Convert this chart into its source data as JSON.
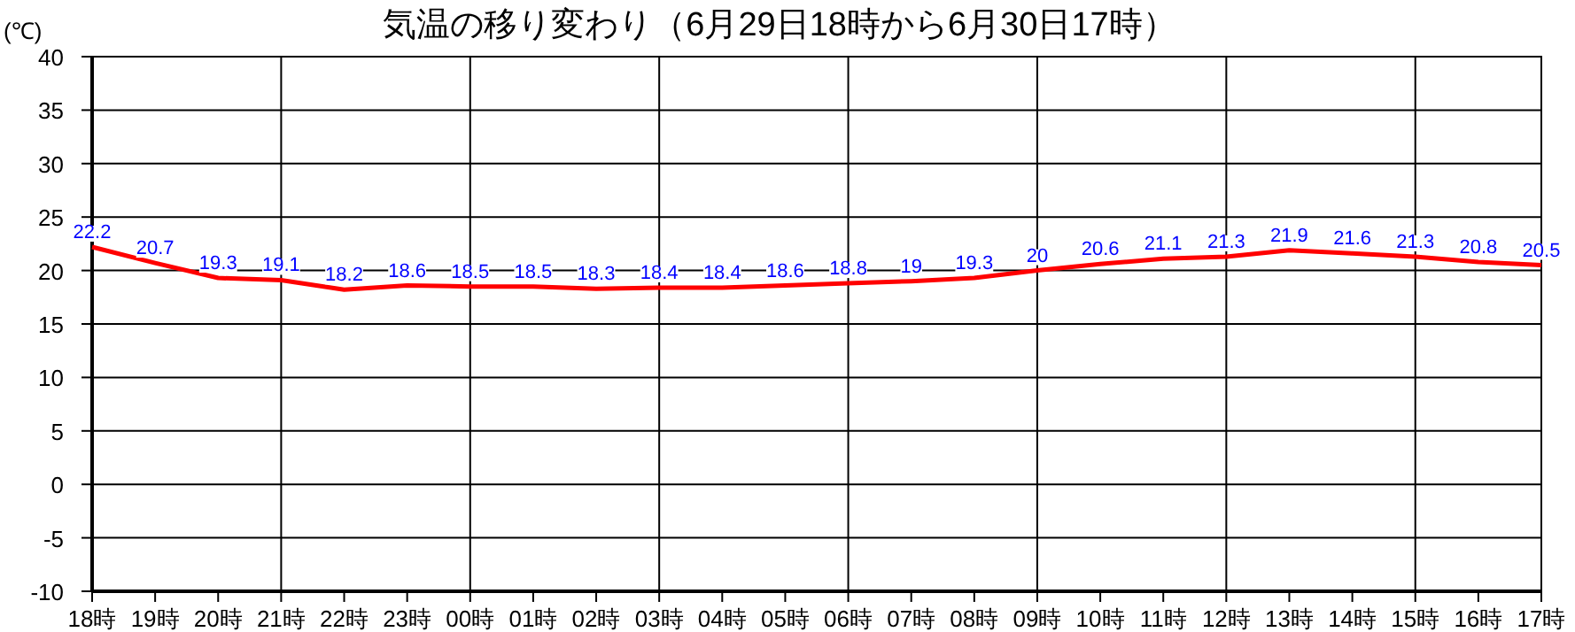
{
  "chart_data": {
    "type": "line",
    "title": "気温の移り変わり（6月29日18時から6月30日17時）",
    "ylabel": "(℃)",
    "categories": [
      "18時",
      "19時",
      "20時",
      "21時",
      "22時",
      "23時",
      "00時",
      "01時",
      "02時",
      "03時",
      "04時",
      "05時",
      "06時",
      "07時",
      "08時",
      "09時",
      "10時",
      "11時",
      "12時",
      "13時",
      "14時",
      "15時",
      "16時",
      "17時"
    ],
    "series": [
      {
        "color": "#ff0000",
        "values": [
          22.2,
          20.7,
          19.3,
          19.1,
          18.2,
          18.6,
          18.5,
          18.5,
          18.3,
          18.4,
          18.4,
          18.6,
          18.8,
          19,
          19.3,
          20,
          20.6,
          21.1,
          21.3,
          21.9,
          21.6,
          21.3,
          20.8,
          20.5
        ]
      }
    ],
    "ylim": [
      -10,
      40
    ],
    "yticks": [
      -10,
      -5,
      0,
      5,
      10,
      15,
      20,
      25,
      30,
      35,
      40
    ],
    "grid": true,
    "data_labels": true,
    "marker": "none",
    "line_style": "solid"
  }
}
